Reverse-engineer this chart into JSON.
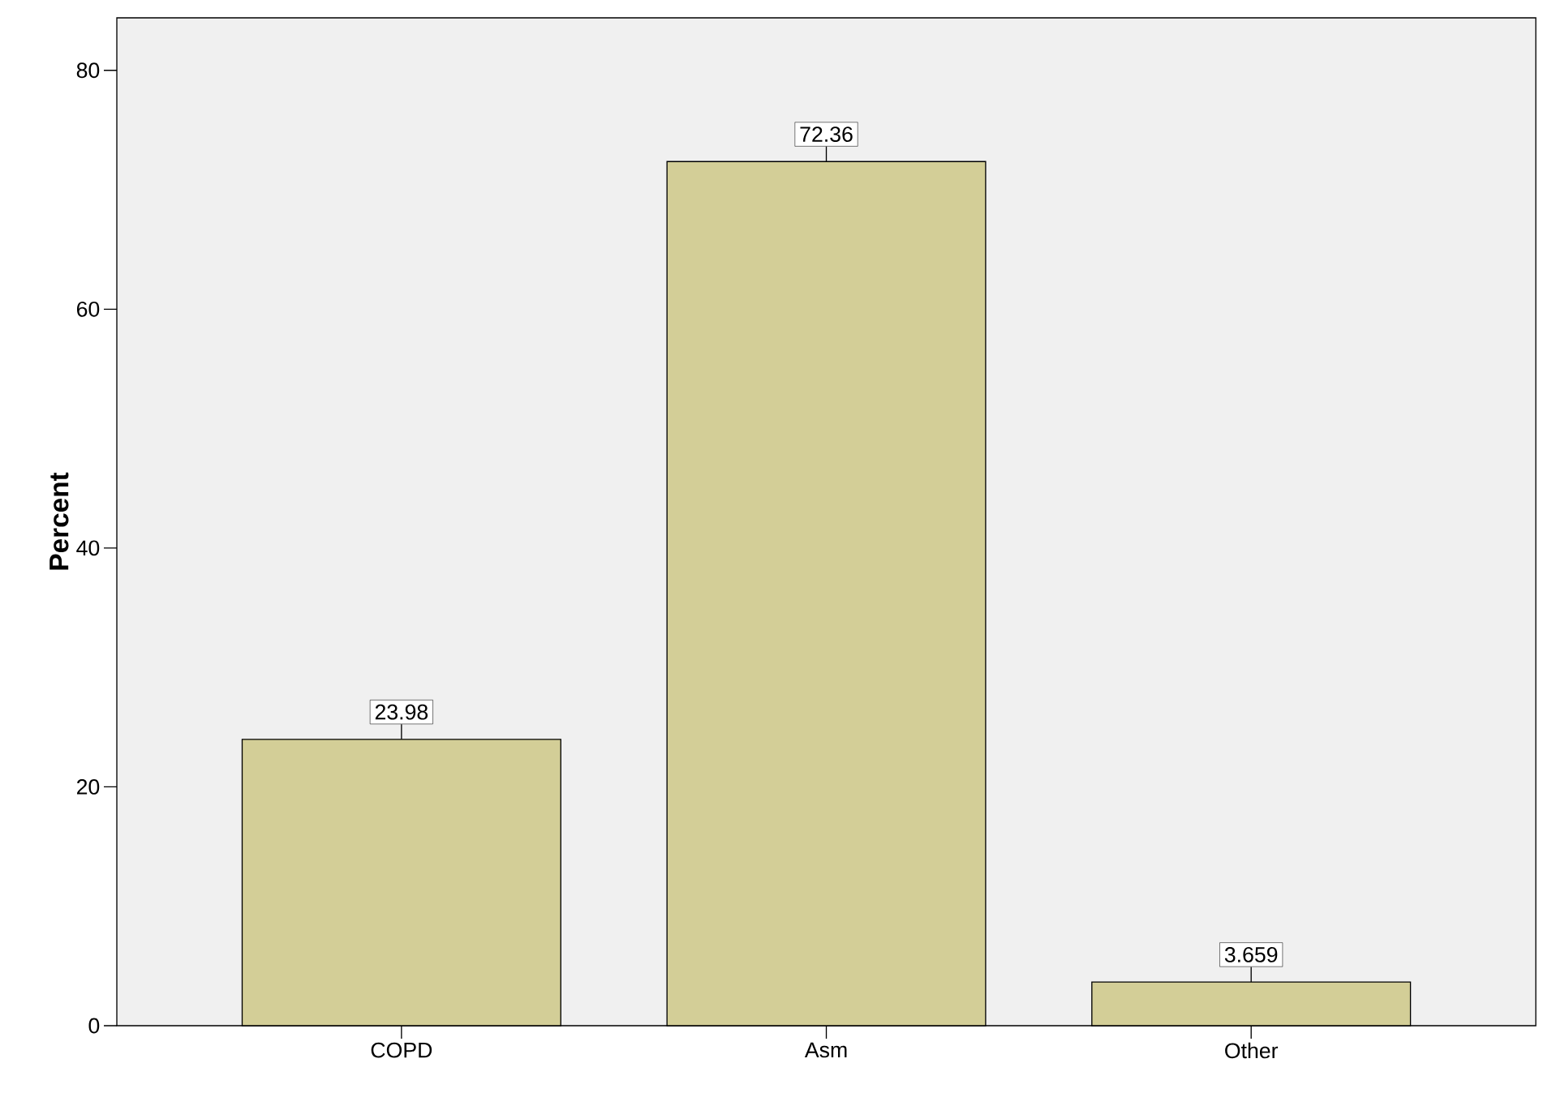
{
  "chart_data": {
    "type": "bar",
    "ylabel": "Percent",
    "categories": [
      "COPD",
      "Asm",
      "Other"
    ],
    "values": [
      23.98,
      72.36,
      3.659
    ],
    "color": "#d3ce97",
    "ylim": [
      0,
      84.4
    ],
    "yticks": [
      0,
      20,
      40,
      60,
      80
    ],
    "data_labels": true
  }
}
